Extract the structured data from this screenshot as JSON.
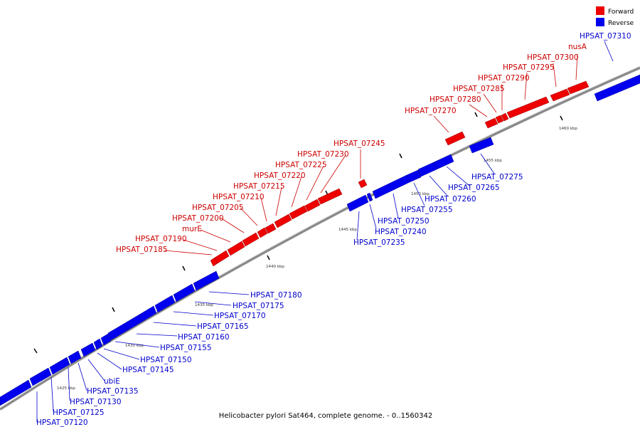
{
  "caption": "Helicobacter pylori Sat464, complete genome. - 0..1560342",
  "legend": [
    {
      "label": "Forward",
      "color": "#ee0000"
    },
    {
      "label": "Reverse",
      "color": "#0000ee"
    }
  ],
  "colors": {
    "forward": "#ee0000",
    "reverse": "#0000ee",
    "backbone": "#888888",
    "leader_forward": "#cc0000",
    "leader_reverse": "#0000cc"
  },
  "tick_labels": [
    "1425 kbp",
    "1430 kbp",
    "1435 kbp",
    "1440 kbp",
    "1445 kbp",
    "1450 kbp",
    "1455 kbp",
    "1460 kbp"
  ],
  "forward_genes": [
    "HPSAT_07185",
    "HPSAT_07190",
    "murE",
    "HPSAT_07200",
    "HPSAT_07205",
    "HPSAT_07210",
    "HPSAT_07215",
    "HPSAT_07220",
    "HPSAT_07225",
    "HPSAT_07230",
    "HPSAT_07245",
    "HPSAT_07270",
    "HPSAT_07280",
    "HPSAT_07285",
    "HPSAT_07290",
    "HPSAT_07295",
    "HPSAT_07300",
    "nusA"
  ],
  "reverse_genes": [
    "HPSAT_07310",
    "HPSAT_07275",
    "HPSAT_07265",
    "HPSAT_07260",
    "HPSAT_07255",
    "HPSAT_07250",
    "HPSAT_07240",
    "HPSAT_07235",
    "HPSAT_07180",
    "HPSAT_07175",
    "HPSAT_07170",
    "HPSAT_07165",
    "HPSAT_07160",
    "HPSAT_07155",
    "HPSAT_07150",
    "HPSAT_07145",
    "ubiE",
    "HPSAT_07135",
    "HPSAT_07130",
    "HPSAT_07125",
    "HPSAT_07120"
  ]
}
